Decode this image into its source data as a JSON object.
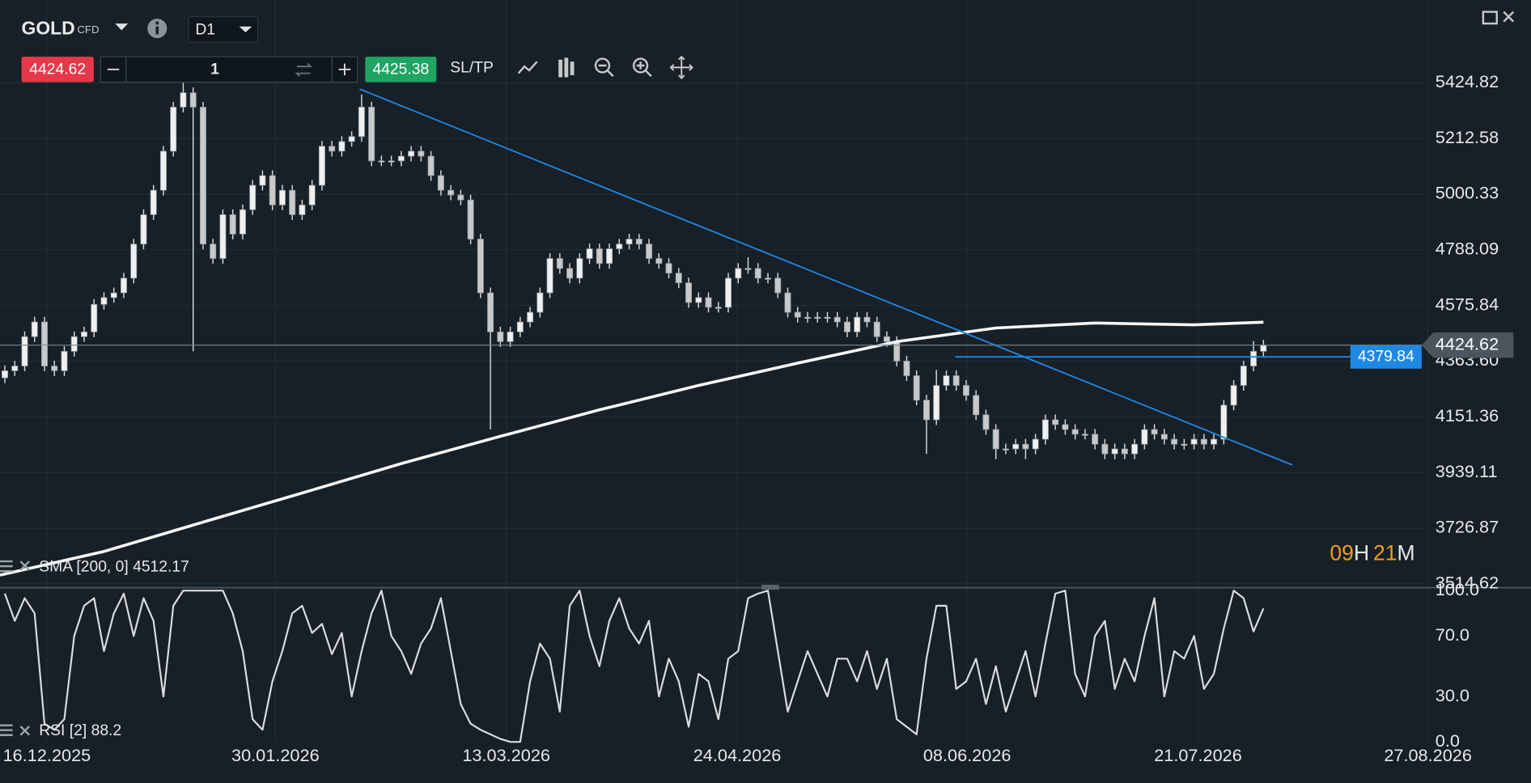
{
  "header": {
    "symbol": "GOLD",
    "instrument_type": "CFD",
    "timeframe": "D1",
    "sell_price": 4424.62,
    "quantity": 1,
    "buy_price": 4425.38,
    "sl_tp": "SL/TP"
  },
  "countdown": {
    "hours": "09",
    "hours_unit": "H",
    "minutes": "21",
    "minutes_unit": "M"
  },
  "chart_data": [
    {
      "type": "candlestick",
      "up_color": "#f0f0f0",
      "down_color": "#c9c9c9",
      "xlim": [
        -0.49,
        154
      ],
      "ylim": [
        3500,
        5740
      ],
      "yticks": [
        5424.82,
        5212.58,
        5000.33,
        4788.09,
        4575.84,
        {
          "value": 4363.6,
          "label": "4363.60"
        },
        4151.36,
        3939.11,
        3726.87,
        3514.62
      ],
      "xticks": [
        {
          "value": 4.24,
          "label": "16.12.2025"
        },
        {
          "value": 27.3,
          "label": "30.01.2026"
        },
        {
          "value": 50.6,
          "label": "13.03.2026"
        },
        {
          "value": 73.9,
          "label": "24.04.2026"
        },
        {
          "value": 97.1,
          "label": "08.06.2026"
        },
        {
          "value": 120.4,
          "label": "21.07.2026"
        },
        {
          "value": 143.6,
          "label": "27.08.2026"
        }
      ],
      "grid": true,
      "open": [
        4300,
        4327,
        4345,
        4457,
        4513,
        4345,
        4327,
        4401,
        4457,
        4475,
        4580,
        4606,
        4624,
        4680,
        4810,
        4922,
        5015,
        5164,
        5332,
        5387,
        5332,
        4810,
        4755,
        4922,
        4848,
        4941,
        5034,
        5071,
        4959,
        5015,
        4922,
        4959,
        5034,
        5183,
        5164,
        5201,
        5220,
        5332,
        5127,
        5127,
        5127,
        5145,
        5164,
        5145,
        5071,
        5015,
        4997,
        4978,
        4829,
        4624,
        4475,
        4438,
        4475,
        4513,
        4550,
        4624,
        4755,
        4717,
        4680,
        4755,
        4792,
        4736,
        4792,
        4810,
        4829,
        4810,
        4755,
        4736,
        4699,
        4662,
        4587,
        4606,
        4569,
        4569,
        4680,
        4717,
        4717,
        4680,
        4680,
        4624,
        4550,
        4531,
        4531,
        4531,
        4531,
        4513,
        4475,
        4531,
        4513,
        4457,
        4438,
        4364,
        4308,
        4215,
        4140,
        4271,
        4308,
        4271,
        4233,
        4159,
        4103,
        4029,
        4029,
        4047,
        4029,
        4066,
        4140,
        4122,
        4103,
        4085,
        4085,
        4047,
        4010,
        4029,
        4010,
        4047,
        4103,
        4085,
        4066,
        4047,
        4047,
        4066,
        4047,
        4066,
        4196,
        4271,
        4345,
        4401
      ],
      "high": [
        4347,
        4365,
        4477,
        4533,
        4533,
        4365,
        4421,
        4477,
        4495,
        4600,
        4626,
        4644,
        4700,
        4830,
        4942,
        5035,
        5184,
        5352,
        5425,
        5407,
        5352,
        4830,
        4942,
        4942,
        4961,
        5054,
        5091,
        5091,
        5035,
        5035,
        4979,
        5054,
        5203,
        5203,
        5221,
        5240,
        5380,
        5352,
        5147,
        5147,
        5165,
        5184,
        5184,
        5165,
        5091,
        5035,
        5017,
        4998,
        4849,
        4644,
        4495,
        4495,
        4533,
        4570,
        4644,
        4775,
        4775,
        4737,
        4775,
        4812,
        4812,
        4812,
        4830,
        4849,
        4849,
        4830,
        4775,
        4756,
        4719,
        4682,
        4626,
        4626,
        4589,
        4700,
        4737,
        4760,
        4737,
        4700,
        4700,
        4644,
        4570,
        4551,
        4551,
        4551,
        4551,
        4533,
        4551,
        4551,
        4533,
        4477,
        4458,
        4384,
        4328,
        4235,
        4330,
        4328,
        4328,
        4291,
        4253,
        4179,
        4123,
        4049,
        4067,
        4067,
        4086,
        4160,
        4160,
        4142,
        4123,
        4105,
        4105,
        4067,
        4049,
        4049,
        4067,
        4123,
        4123,
        4105,
        4086,
        4067,
        4086,
        4086,
        4086,
        4216,
        4291,
        4365,
        4440,
        4445
      ],
      "low": [
        4280,
        4307,
        4325,
        4437,
        4325,
        4307,
        4307,
        4381,
        4437,
        4455,
        4560,
        4586,
        4604,
        4660,
        4790,
        4902,
        4995,
        5144,
        5312,
        4401,
        4790,
        4735,
        4735,
        4828,
        4828,
        4921,
        5014,
        4939,
        4939,
        4902,
        4902,
        4939,
        5014,
        5144,
        5144,
        5181,
        5200,
        5107,
        5107,
        5107,
        5107,
        5125,
        5125,
        5051,
        4995,
        4977,
        4958,
        4809,
        4604,
        4103,
        4418,
        4418,
        4455,
        4493,
        4530,
        4604,
        4697,
        4660,
        4660,
        4735,
        4716,
        4716,
        4772,
        4790,
        4790,
        4735,
        4716,
        4679,
        4642,
        4567,
        4567,
        4549,
        4549,
        4549,
        4660,
        4697,
        4660,
        4660,
        4604,
        4530,
        4511,
        4511,
        4511,
        4511,
        4493,
        4455,
        4455,
        4493,
        4437,
        4418,
        4344,
        4288,
        4195,
        4010,
        4120,
        4251,
        4251,
        4213,
        4139,
        4083,
        3990,
        4009,
        4009,
        3990,
        4009,
        4046,
        4102,
        4083,
        4065,
        4065,
        4027,
        3990,
        3990,
        3990,
        3990,
        4027,
        4065,
        4046,
        4027,
        4027,
        4027,
        4027,
        4027,
        4046,
        4176,
        4251,
        4325,
        4381
      ],
      "close": [
        4327,
        4345,
        4457,
        4513,
        4345,
        4327,
        4401,
        4457,
        4475,
        4580,
        4606,
        4624,
        4680,
        4810,
        4922,
        5015,
        5164,
        5332,
        5387,
        5332,
        4810,
        4755,
        4922,
        4848,
        4941,
        5034,
        5071,
        4959,
        5015,
        4922,
        4959,
        5034,
        5183,
        5164,
        5201,
        5220,
        5332,
        5127,
        5127,
        5127,
        5145,
        5164,
        5145,
        5071,
        5015,
        4997,
        4978,
        4829,
        4624,
        4475,
        4438,
        4475,
        4513,
        4550,
        4624,
        4755,
        4717,
        4680,
        4755,
        4792,
        4736,
        4792,
        4810,
        4829,
        4810,
        4755,
        4736,
        4699,
        4662,
        4587,
        4606,
        4569,
        4569,
        4680,
        4717,
        4717,
        4680,
        4680,
        4624,
        4550,
        4531,
        4531,
        4531,
        4531,
        4513,
        4475,
        4531,
        4513,
        4457,
        4438,
        4364,
        4308,
        4215,
        4140,
        4271,
        4308,
        4271,
        4233,
        4159,
        4103,
        4029,
        4029,
        4047,
        4029,
        4066,
        4140,
        4122,
        4103,
        4085,
        4085,
        4047,
        4010,
        4029,
        4010,
        4047,
        4103,
        4085,
        4066,
        4047,
        4047,
        4066,
        4047,
        4066,
        4196,
        4271,
        4345,
        4401,
        4425
      ],
      "overlays": [
        {
          "name": "SMA [200, 0] 4512.17",
          "color": "#f5f5f5",
          "x": [
            -0.49,
            10,
            20,
            30,
            40,
            50,
            60,
            70,
            80,
            90,
            100,
            110,
            120,
            127
          ],
          "values": [
            3548,
            3638,
            3750,
            3861,
            3973,
            4077,
            4178,
            4271,
            4356,
            4438,
            4490,
            4509,
            4502,
            4512.17
          ]
        }
      ],
      "lines": [
        {
          "color": "#1e88e5",
          "points": [
            [
              35.8,
              5401
            ],
            [
              129.9,
              3968
            ]
          ]
        },
        {
          "color": "#1e88e5",
          "points": [
            [
              95.9,
              4379.84
            ],
            [
              143,
              4379.84
            ]
          ]
        }
      ],
      "last_price": 4424.62
    },
    {
      "type": "line",
      "xlim": [
        -0.49,
        154
      ],
      "ylim": [
        0,
        100
      ],
      "yticks": [
        {
          "value": 100,
          "label": "100.0"
        },
        {
          "value": 70,
          "label": "70.0"
        },
        {
          "value": 30,
          "label": "30.0"
        },
        {
          "value": 0,
          "label": "0.0"
        }
      ],
      "series": [
        {
          "name": "RSI [2] 88.2",
          "color": "#dcdcdc",
          "values": [
            98,
            80,
            95,
            85,
            12,
            8,
            15,
            70,
            90,
            95,
            60,
            85,
            98,
            70,
            95,
            80,
            30,
            90,
            100,
            100,
            100,
            100,
            100,
            85,
            60,
            15,
            8,
            40,
            60,
            85,
            90,
            72,
            78,
            58,
            72,
            30,
            60,
            85,
            100,
            70,
            60,
            45,
            65,
            75,
            95,
            60,
            25,
            12,
            8,
            5,
            2,
            0,
            0,
            40,
            65,
            55,
            20,
            90,
            100,
            70,
            50,
            80,
            95,
            75,
            65,
            80,
            30,
            55,
            40,
            10,
            45,
            40,
            15,
            55,
            60,
            95,
            98,
            100,
            60,
            20,
            40,
            60,
            45,
            30,
            55,
            55,
            40,
            60,
            35,
            55,
            15,
            10,
            5,
            55,
            90,
            90,
            35,
            40,
            55,
            25,
            50,
            20,
            40,
            60,
            30,
            65,
            98,
            100,
            45,
            30,
            70,
            80,
            35,
            55,
            40,
            70,
            95,
            30,
            60,
            55,
            70,
            35,
            45,
            75,
            100,
            95,
            73,
            88.2
          ]
        }
      ]
    }
  ]
}
